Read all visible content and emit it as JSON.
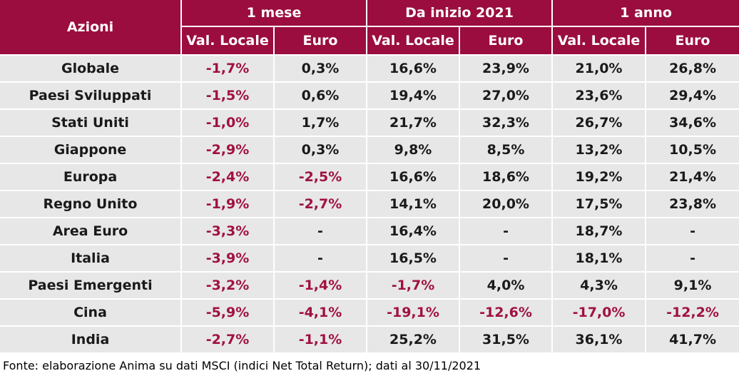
{
  "chart_data": {
    "type": "table",
    "row_header_label": "Azioni",
    "groups": [
      "1 mese",
      "Da inizio 2021",
      "1 anno"
    ],
    "subcolumns": [
      "Val. Locale",
      "Euro"
    ],
    "rows": [
      {
        "label": "Globale",
        "values": [
          "-1,7%",
          "0,3%",
          "16,6%",
          "23,9%",
          "21,0%",
          "26,8%"
        ]
      },
      {
        "label": "Paesi Sviluppati",
        "values": [
          "-1,5%",
          "0,6%",
          "19,4%",
          "27,0%",
          "23,6%",
          "29,4%"
        ]
      },
      {
        "label": "Stati Uniti",
        "values": [
          "-1,0%",
          "1,7%",
          "21,7%",
          "32,3%",
          "26,7%",
          "34,6%"
        ]
      },
      {
        "label": "Giappone",
        "values": [
          "-2,9%",
          "0,3%",
          "9,8%",
          "8,5%",
          "13,2%",
          "10,5%"
        ]
      },
      {
        "label": "Europa",
        "values": [
          "-2,4%",
          "-2,5%",
          "16,6%",
          "18,6%",
          "19,2%",
          "21,4%"
        ]
      },
      {
        "label": "Regno Unito",
        "values": [
          "-1,9%",
          "-2,7%",
          "14,1%",
          "20,0%",
          "17,5%",
          "23,8%"
        ]
      },
      {
        "label": "Area Euro",
        "values": [
          "-3,3%",
          "-",
          "16,4%",
          "-",
          "18,7%",
          "-"
        ]
      },
      {
        "label": "Italia",
        "values": [
          "-3,9%",
          "-",
          "16,5%",
          "-",
          "18,1%",
          "-"
        ]
      },
      {
        "label": "Paesi Emergenti",
        "values": [
          "-3,2%",
          "-1,4%",
          "-1,7%",
          "4,0%",
          "4,3%",
          "9,1%"
        ]
      },
      {
        "label": "Cina",
        "values": [
          "-5,9%",
          "-4,1%",
          "-19,1%",
          "-12,6%",
          "-17,0%",
          "-12,2%"
        ]
      },
      {
        "label": "India",
        "values": [
          "-2,7%",
          "-1,1%",
          "25,2%",
          "31,5%",
          "36,1%",
          "41,7%"
        ]
      }
    ],
    "source": "Fonte: elaborazione Anima su dati MSCI (indici Net Total Return); dati al 30/11/2021"
  },
  "colors": {
    "header_bg": "#9b0d3e",
    "header_text": "#ffffff",
    "cell_bg": "#e7e7e7",
    "negative_text": "#a0123f",
    "positive_text": "#1a1a1a"
  }
}
